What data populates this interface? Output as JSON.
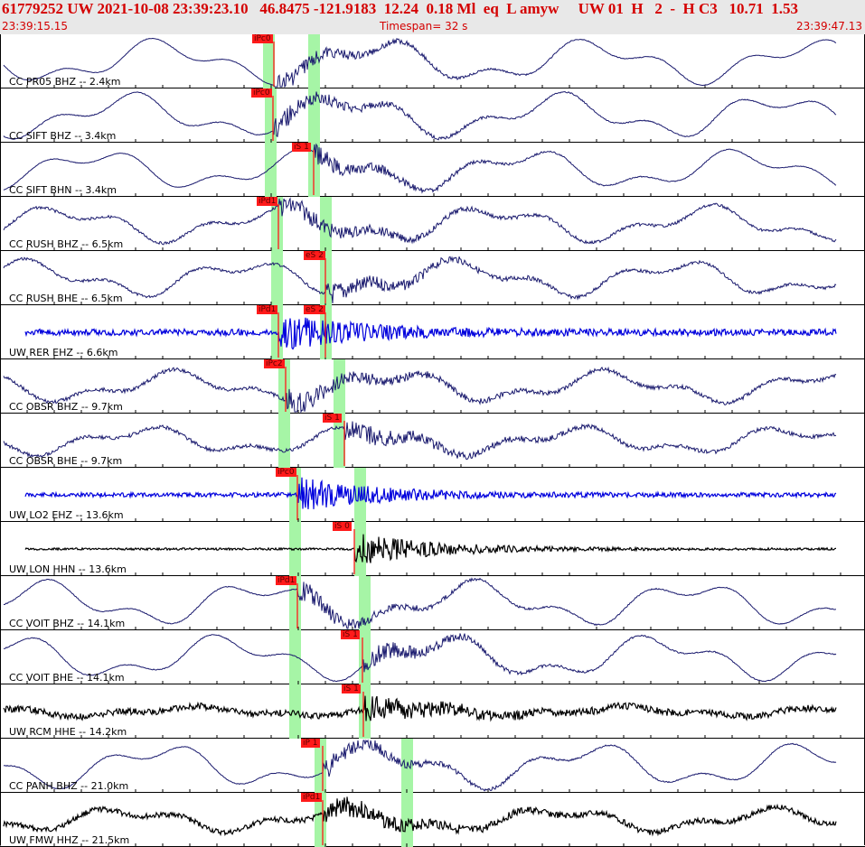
{
  "header": {
    "event_line": "61779252 UW 2021-10-08 23:39:23.10   46.8475 -121.9183  12.24  0.18 Ml  eq  L amyw     UW 01  H   2  -  H C3   10.71  1.53",
    "start_time": "23:39:15.15",
    "timespan": "Timespan=  32 s",
    "end_time": "23:39:47.13"
  },
  "colors": {
    "trace_navy": "#1a1a6e",
    "trace_blue": "#0000dd",
    "trace_black": "#000000",
    "pick": "#ff1a1a",
    "window": "#a6f5a6",
    "header_text": "#d40000"
  },
  "traces": [
    {
      "label": "CC PR05 BHZ -- 2.4km",
      "color": "navy",
      "style": "smooth",
      "noise": 0.05,
      "amp": 22,
      "green": [
        297,
        347
      ],
      "picks": [
        {
          "label": "iPc0",
          "x": 303
        }
      ]
    },
    {
      "label": "CC SIFT BHZ -- 3.4km",
      "color": "navy",
      "style": "smooth",
      "noise": 0.08,
      "amp": 22,
      "green": [
        299,
        347
      ],
      "picks": [
        {
          "label": "iPc0",
          "x": 302
        }
      ]
    },
    {
      "label": "CC SIFT BHN -- 3.4km",
      "color": "navy",
      "style": "smooth",
      "noise": 0.06,
      "amp": 20,
      "green": [
        299,
        347
      ],
      "picks": [
        {
          "label": "iS 1",
          "x": 347
        }
      ]
    },
    {
      "label": "CC RUSH BHZ -- 6.5km",
      "color": "navy",
      "style": "noisy",
      "noise": 0.25,
      "amp": 18,
      "green": [
        306,
        360
      ],
      "picks": [
        {
          "label": "iPd1",
          "x": 308
        }
      ]
    },
    {
      "label": "CC RUSH BHE -- 6.5km",
      "color": "navy",
      "style": "noisy",
      "noise": 0.25,
      "amp": 18,
      "green": [
        306,
        360
      ],
      "picks": [
        {
          "label": "eS 2",
          "x": 360
        }
      ]
    },
    {
      "label": "UW RER EHZ -- 6.6km",
      "color": "blue",
      "style": "flat",
      "noise": 0.6,
      "amp": 6,
      "green": [
        306,
        360
      ],
      "picks": [
        {
          "label": "iPd1",
          "x": 308
        },
        {
          "label": "eS 2",
          "x": 360
        }
      ]
    },
    {
      "label": "CC OBSR BHZ -- 9.7km",
      "color": "navy",
      "style": "noisy",
      "noise": 0.35,
      "amp": 16,
      "green": [
        314,
        375
      ],
      "picks": [
        {
          "label": "iPc2",
          "x": 316
        }
      ]
    },
    {
      "label": "CC OBSR BHE -- 9.7km",
      "color": "navy",
      "style": "noisy",
      "noise": 0.35,
      "amp": 14,
      "green": [
        314,
        375
      ],
      "picks": [
        {
          "label": "iS 1",
          "x": 381
        }
      ]
    },
    {
      "label": "UW LO2 EHZ -- 13.6km",
      "color": "blue",
      "style": "flat",
      "noise": 0.4,
      "amp": 3,
      "green": [
        326,
        398
      ],
      "picks": [
        {
          "label": "iPc0",
          "x": 329
        }
      ]
    },
    {
      "label": "UW LON HHN -- 13.6km",
      "color": "black",
      "style": "flat",
      "noise": 0.2,
      "amp": 2,
      "green": [
        326,
        398
      ],
      "picks": [
        {
          "label": "iS 0",
          "x": 392
        }
      ]
    },
    {
      "label": "CC VOIT BHZ -- 14.1km",
      "color": "navy",
      "style": "smooth",
      "noise": 0.08,
      "amp": 22,
      "green": [
        326,
        403
      ],
      "picks": [
        {
          "label": "iPd1",
          "x": 329
        }
      ]
    },
    {
      "label": "CC VOIT BHE -- 14.1km",
      "color": "navy",
      "style": "smooth",
      "noise": 0.08,
      "amp": 22,
      "green": [
        326,
        403
      ],
      "picks": [
        {
          "label": "iS 1",
          "x": 401
        }
      ]
    },
    {
      "label": "UW RCM HHE -- 14.2km",
      "color": "black",
      "style": "noisy",
      "noise": 0.6,
      "amp": 5,
      "green": [
        326,
        403
      ],
      "picks": [
        {
          "label": "iS 1",
          "x": 402
        }
      ]
    },
    {
      "label": "CC PANH BHZ -- 21.0km",
      "color": "navy",
      "style": "smooth",
      "noise": 0.08,
      "amp": 22,
      "green": [
        354,
        450
      ],
      "picks": [
        {
          "label": "iP 1",
          "x": 357
        }
      ]
    },
    {
      "label": "UW FMW HHZ -- 21.5km",
      "color": "black",
      "style": "noisy",
      "noise": 0.5,
      "amp": 12,
      "green": [
        354,
        450
      ],
      "picks": [
        {
          "label": "iPd1",
          "x": 357
        }
      ]
    }
  ]
}
